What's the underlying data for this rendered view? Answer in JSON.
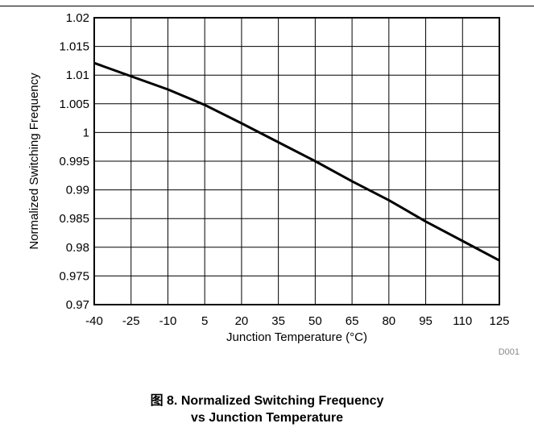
{
  "chart_data": {
    "type": "line",
    "xlabel": "Junction Temperature (°C)",
    "ylabel": "Normalized Switching Frequency",
    "xlim": [
      -40,
      125
    ],
    "ylim": [
      0.97,
      1.02
    ],
    "x_ticks": [
      -40,
      -25,
      -10,
      5,
      20,
      35,
      50,
      65,
      80,
      95,
      110,
      125
    ],
    "x_tick_labels": [
      "-40",
      "-25",
      "-10",
      "5",
      "20",
      "35",
      "50",
      "65",
      "80",
      "95",
      "110",
      "125"
    ],
    "y_ticks": [
      0.97,
      0.975,
      0.98,
      0.985,
      0.99,
      0.995,
      1.0,
      1.005,
      1.01,
      1.015,
      1.02
    ],
    "y_tick_labels": [
      "0.97",
      "0.975",
      "0.98",
      "0.985",
      "0.99",
      "0.995",
      "1",
      "1.005",
      "1.01",
      "1.015",
      "1.02"
    ],
    "grid": true,
    "series": [
      {
        "x": [
          -40,
          -25,
          -10,
          0,
          5,
          20,
          35,
          50,
          65,
          80,
          95,
          110,
          125
        ],
        "y": [
          1.0121,
          1.0098,
          1.0075,
          1.0057,
          1.0048,
          1.0016,
          0.9983,
          0.995,
          0.9915,
          0.9882,
          0.9845,
          0.9811,
          0.9777
        ]
      }
    ],
    "color": "#000000"
  },
  "figure_code": "D001",
  "caption": {
    "line1": "图 8. Normalized Switching Frequency",
    "line2": "vs Junction Temperature"
  }
}
